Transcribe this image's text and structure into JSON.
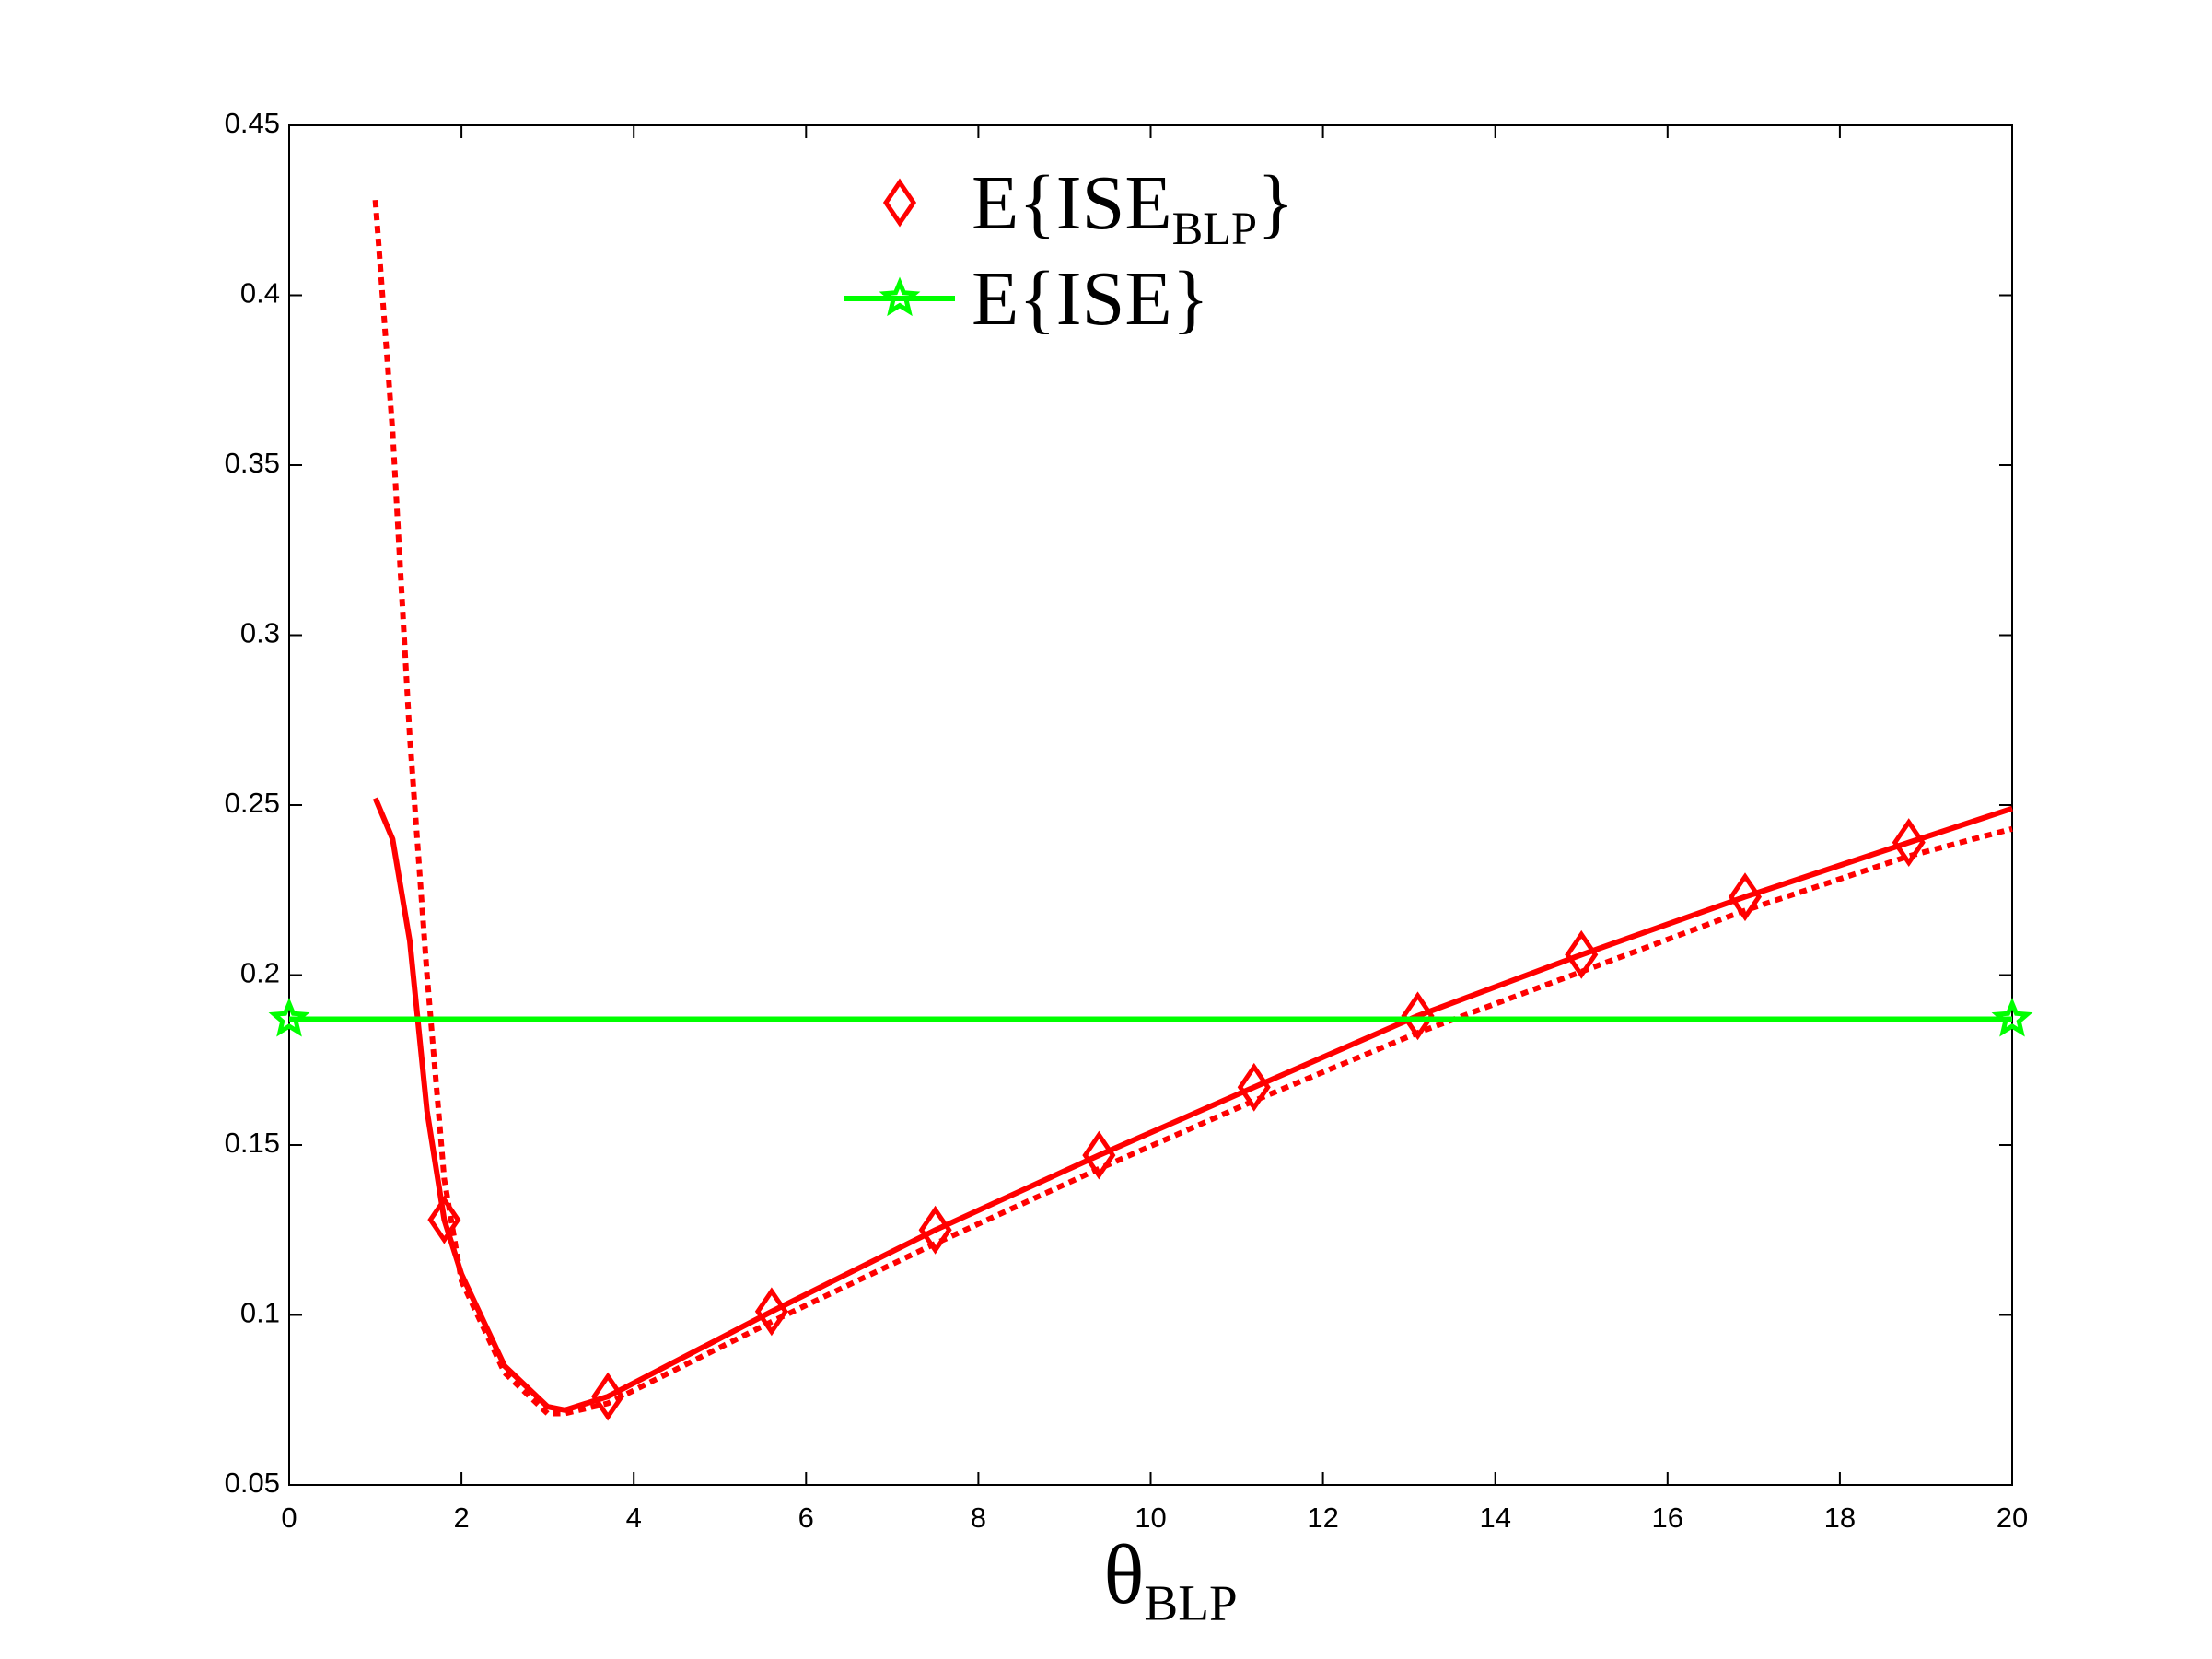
{
  "chart_data": {
    "type": "line",
    "xlabel": "θ_BLP",
    "xlim": [
      0,
      20
    ],
    "xticks": [
      0,
      2,
      4,
      6,
      8,
      10,
      12,
      14,
      16,
      18,
      20
    ],
    "ylim": [
      0.05,
      0.45
    ],
    "yticks": [
      0.05,
      0.1,
      0.15,
      0.2,
      0.25,
      0.3,
      0.35,
      0.4,
      0.45
    ],
    "legend": "top",
    "series": [
      {
        "name": "E{ISE_BLP}",
        "color": "#ff0000",
        "marker": "diamond",
        "linestyle": "none",
        "x": [
          1.8,
          3.7,
          5.6,
          7.5,
          9.4,
          11.2,
          13.1,
          15,
          16.9,
          18.8
        ],
        "values": [
          0.128,
          0.076,
          0.101,
          0.125,
          0.147,
          0.167,
          0.188,
          0.206,
          0.223,
          0.239
        ]
      },
      {
        "color": "#ff0000",
        "marker": "none",
        "linestyle": "solid",
        "x": [
          1,
          1.2,
          1.4,
          1.6,
          1.8,
          2,
          2.5,
          3,
          3.2,
          3.7,
          5.6,
          7.5,
          9.4,
          11.2,
          13.1,
          15,
          16.9,
          18.8,
          20
        ],
        "values": [
          0.252,
          0.24,
          0.21,
          0.16,
          0.128,
          0.112,
          0.085,
          0.073,
          0.072,
          0.076,
          0.101,
          0.125,
          0.147,
          0.167,
          0.188,
          0.206,
          0.223,
          0.239,
          0.249
        ]
      },
      {
        "color": "#ff0000",
        "marker": "none",
        "linestyle": "dotted",
        "x": [
          1,
          1.2,
          1.4,
          1.6,
          1.8,
          2,
          2.5,
          3,
          3.2,
          3.7,
          5.6,
          7.5,
          9.4,
          11.2,
          13.1,
          15,
          16.9,
          18.8,
          20
        ],
        "values": [
          0.428,
          0.36,
          0.27,
          0.2,
          0.14,
          0.11,
          0.083,
          0.071,
          0.071,
          0.074,
          0.098,
          0.121,
          0.143,
          0.163,
          0.183,
          0.201,
          0.219,
          0.235,
          0.243
        ]
      },
      {
        "name": "E{ISE}",
        "color": "#00ff00",
        "marker": "star",
        "linestyle": "solid",
        "x": [
          0,
          20
        ],
        "values": [
          0.187,
          0.187
        ]
      }
    ]
  }
}
